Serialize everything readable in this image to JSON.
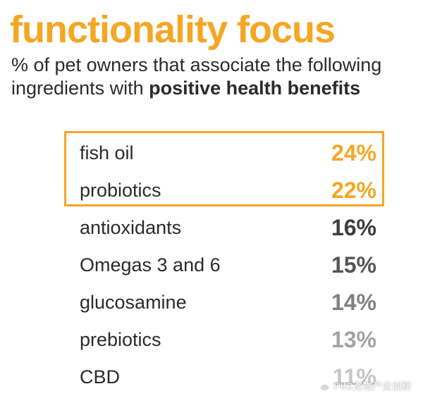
{
  "title": "functionality focus",
  "subtitle": {
    "line1": "% of pet owners that associate the following",
    "line2_prefix": "ingredients with ",
    "line2_bold": "positive health benefits"
  },
  "chart_data": {
    "type": "table",
    "title": "functionality focus",
    "subtitle": "% of pet owners that associate the following ingredients with positive health benefits",
    "categories": [
      "fish oil",
      "probiotics",
      "antioxidants",
      "Omegas 3 and 6",
      "glucosamine",
      "prebiotics",
      "CBD"
    ],
    "values": [
      24,
      22,
      16,
      15,
      14,
      13,
      11
    ],
    "value_labels": [
      "24%",
      "22%",
      "16%",
      "15%",
      "14%",
      "13%",
      "11%"
    ],
    "highlighted": [
      "fish oil",
      "probiotics"
    ],
    "value_colors": [
      "#f5a623",
      "#f5a623",
      "#3d3d3d",
      "#555555",
      "#808080",
      "#a3a3a3",
      "#c6c6c6"
    ],
    "accent_color": "#f5a623"
  },
  "watermark": {
    "text": "PIIS宠物产业创新",
    "icon": "wechat-icon"
  }
}
